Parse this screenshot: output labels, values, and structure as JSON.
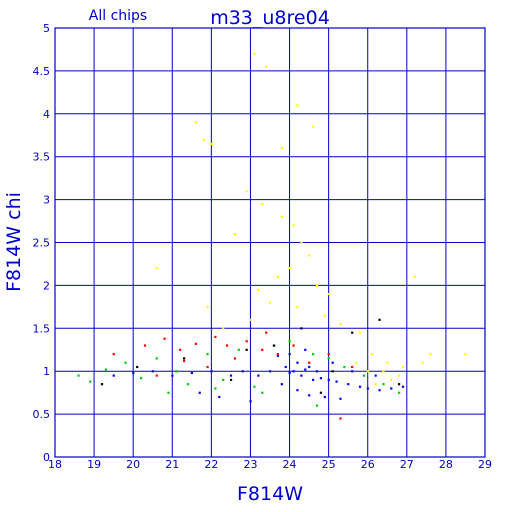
{
  "chart_data": {
    "type": "scatter",
    "title": "m33_u8re04",
    "subtitle": "All chips",
    "xlabel": "F814W",
    "ylabel": "F814W chi",
    "xlim": [
      18,
      29
    ],
    "ylim": [
      0,
      5
    ],
    "grid": true,
    "x_ticks": [
      "18",
      "19",
      "20",
      "21",
      "22",
      "23",
      "24",
      "25",
      "26",
      "27",
      "28",
      "29"
    ],
    "y_ticks": [
      "0",
      "0.5",
      "1",
      "1.5",
      "2",
      "2.5",
      "3",
      "3.5",
      "4",
      "4.5",
      "5"
    ],
    "colors": {
      "axes": "#0000cc",
      "grid": "#0000cc",
      "text": "#0000cc",
      "series_blue": "#0000ff",
      "series_green": "#00cc00",
      "series_red": "#ff0000",
      "series_yellow": "#ffff00",
      "series_black": "#000000"
    },
    "series": [
      {
        "color": "#0000ff",
        "points": [
          [
            24.1,
            1.0
          ],
          [
            24.3,
            0.95
          ],
          [
            24.5,
            1.05
          ],
          [
            24.2,
            1.1
          ],
          [
            24.6,
            0.9
          ],
          [
            24.0,
            0.98
          ],
          [
            24.4,
            1.02
          ],
          [
            24.8,
            0.92
          ],
          [
            23.9,
            1.05
          ],
          [
            24.7,
            1.0
          ],
          [
            25.0,
            0.9
          ],
          [
            25.2,
            0.88
          ],
          [
            25.5,
            0.85
          ],
          [
            25.8,
            0.82
          ],
          [
            26.0,
            0.8
          ],
          [
            26.3,
            0.78
          ],
          [
            26.6,
            0.8
          ],
          [
            26.9,
            0.82
          ],
          [
            23.5,
            1.0
          ],
          [
            23.2,
            0.95
          ],
          [
            22.8,
            1.0
          ],
          [
            22.5,
            0.95
          ],
          [
            22.0,
            1.0
          ],
          [
            21.5,
            0.98
          ],
          [
            21.0,
            0.95
          ],
          [
            20.5,
            1.0
          ],
          [
            20.0,
            0.98
          ],
          [
            19.5,
            0.95
          ],
          [
            23.8,
            0.85
          ],
          [
            24.2,
            0.78
          ],
          [
            24.5,
            0.72
          ],
          [
            24.9,
            0.7
          ],
          [
            25.3,
            0.68
          ],
          [
            22.2,
            0.7
          ],
          [
            21.7,
            0.75
          ],
          [
            23.0,
            0.65
          ],
          [
            24.0,
            1.2
          ],
          [
            24.4,
            1.25
          ],
          [
            23.7,
            1.18
          ],
          [
            25.1,
            1.1
          ],
          [
            25.6,
            1.0
          ],
          [
            26.2,
            0.95
          ]
        ]
      },
      {
        "color": "#00cc00",
        "points": [
          [
            18.6,
            0.95
          ],
          [
            18.9,
            0.88
          ],
          [
            19.3,
            1.02
          ],
          [
            19.8,
            1.1
          ],
          [
            20.2,
            0.92
          ],
          [
            20.6,
            1.15
          ],
          [
            21.1,
            1.0
          ],
          [
            21.4,
            0.85
          ],
          [
            21.9,
            1.2
          ],
          [
            22.3,
            0.9
          ],
          [
            22.7,
            1.25
          ],
          [
            23.1,
            0.82
          ],
          [
            23.6,
            1.3
          ],
          [
            24.0,
            1.35
          ],
          [
            24.6,
            1.2
          ],
          [
            25.0,
            1.15
          ],
          [
            25.4,
            1.05
          ],
          [
            25.9,
            0.95
          ],
          [
            26.4,
            0.85
          ],
          [
            26.8,
            0.75
          ],
          [
            23.3,
            0.75
          ],
          [
            22.1,
            0.8
          ],
          [
            20.9,
            0.75
          ],
          [
            24.7,
            0.6
          ]
        ]
      },
      {
        "color": "#ff0000",
        "points": [
          [
            19.5,
            1.2
          ],
          [
            20.3,
            1.3
          ],
          [
            20.8,
            1.38
          ],
          [
            21.2,
            1.25
          ],
          [
            21.6,
            1.32
          ],
          [
            22.1,
            1.4
          ],
          [
            22.4,
            1.3
          ],
          [
            22.9,
            1.35
          ],
          [
            23.3,
            1.25
          ],
          [
            23.7,
            1.2
          ],
          [
            24.1,
            1.3
          ],
          [
            24.5,
            1.1
          ],
          [
            25.0,
            1.2
          ],
          [
            25.6,
            1.05
          ],
          [
            21.9,
            1.05
          ],
          [
            22.6,
            1.15
          ],
          [
            20.6,
            0.95
          ],
          [
            25.3,
            0.45
          ],
          [
            23.4,
            1.45
          ],
          [
            21.3,
            1.12
          ]
        ]
      },
      {
        "color": "#ffff00",
        "points": [
          [
            21.6,
            3.9
          ],
          [
            21.8,
            3.7
          ],
          [
            22.0,
            3.65
          ],
          [
            23.1,
            4.7
          ],
          [
            23.4,
            4.55
          ],
          [
            24.2,
            4.1
          ],
          [
            24.6,
            3.85
          ],
          [
            23.8,
            3.6
          ],
          [
            22.9,
            3.1
          ],
          [
            23.3,
            2.95
          ],
          [
            23.8,
            2.8
          ],
          [
            24.1,
            2.7
          ],
          [
            24.3,
            2.5
          ],
          [
            24.5,
            2.35
          ],
          [
            24.0,
            2.2
          ],
          [
            23.7,
            2.1
          ],
          [
            24.7,
            2.0
          ],
          [
            25.0,
            1.9
          ],
          [
            23.2,
            1.95
          ],
          [
            23.5,
            1.8
          ],
          [
            24.2,
            1.75
          ],
          [
            24.9,
            1.65
          ],
          [
            25.3,
            1.55
          ],
          [
            25.8,
            1.45
          ],
          [
            26.1,
            1.2
          ],
          [
            26.4,
            1.0
          ],
          [
            26.6,
            0.9
          ],
          [
            26.2,
            0.85
          ],
          [
            26.8,
            0.95
          ],
          [
            25.7,
            1.1
          ],
          [
            26.0,
            1.0
          ],
          [
            26.5,
            1.1
          ],
          [
            27.6,
            1.2
          ],
          [
            28.5,
            1.2
          ],
          [
            27.2,
            2.1
          ],
          [
            22.6,
            2.6
          ],
          [
            21.9,
            1.75
          ],
          [
            20.6,
            2.2
          ],
          [
            22.3,
            1.5
          ],
          [
            23.0,
            1.6
          ],
          [
            27.4,
            1.1
          ],
          [
            26.9,
            1.05
          ]
        ]
      },
      {
        "color": "#000000",
        "points": [
          [
            19.2,
            0.85
          ],
          [
            20.1,
            1.05
          ],
          [
            21.3,
            1.15
          ],
          [
            22.5,
            0.9
          ],
          [
            23.6,
            1.3
          ],
          [
            24.3,
            1.5
          ],
          [
            25.1,
            1.0
          ],
          [
            25.6,
            1.45
          ],
          [
            26.3,
            1.6
          ],
          [
            24.8,
            0.75
          ],
          [
            22.9,
            1.25
          ],
          [
            26.8,
            0.85
          ]
        ]
      }
    ]
  }
}
